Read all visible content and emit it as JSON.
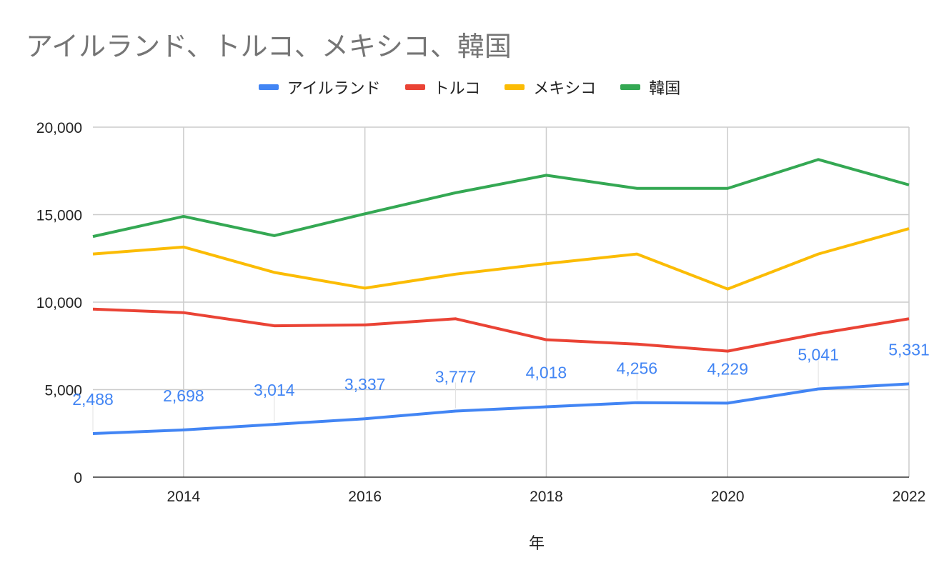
{
  "chart_data": {
    "type": "line",
    "title": "アイルランド、トルコ、メキシコ、韓国",
    "xlabel": "年",
    "ylabel": "",
    "x": [
      2013,
      2014,
      2015,
      2016,
      2017,
      2018,
      2019,
      2020,
      2021,
      2022
    ],
    "xlim": [
      2013,
      2022
    ],
    "xticks": [
      "2014",
      "2016",
      "2018",
      "2020",
      "2022"
    ],
    "ylim": [
      0,
      20000
    ],
    "yticks": [
      "0",
      "5,000",
      "10,000",
      "15,000",
      "20,000"
    ],
    "grid": true,
    "legend": "top",
    "series": [
      {
        "name": "アイルランド",
        "color": "#4285F4",
        "values": [
          2488,
          2698,
          3014,
          3337,
          3777,
          4018,
          4256,
          4229,
          5041,
          5331
        ],
        "labels": [
          "2,488",
          "2,698",
          "3,014",
          "3,337",
          "3,777",
          "4,018",
          "4,256",
          "4,229",
          "5,041",
          "5,331"
        ]
      },
      {
        "name": "トルコ",
        "color": "#EA4335",
        "values": [
          9600,
          9400,
          8650,
          8700,
          9050,
          7850,
          7600,
          7200,
          8200,
          9050
        ]
      },
      {
        "name": "メキシコ",
        "color": "#FBBC04",
        "values": [
          12750,
          13150,
          11700,
          10800,
          11600,
          12200,
          12750,
          10750,
          12750,
          14200
        ]
      },
      {
        "name": "韓国",
        "color": "#34A853",
        "values": [
          13750,
          14900,
          13800,
          15050,
          16250,
          17250,
          16500,
          16500,
          18150,
          16700
        ]
      }
    ]
  }
}
